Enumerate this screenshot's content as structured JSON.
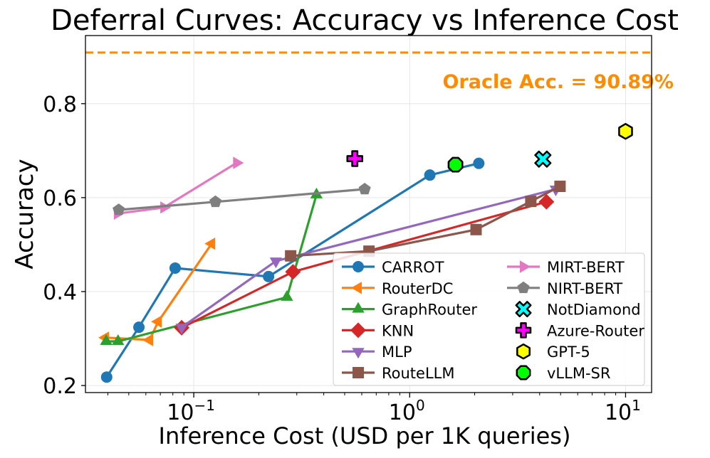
{
  "chart_data": {
    "type": "line",
    "title": "Deferral Curves: Accuracy vs Inference Cost",
    "xlabel": "Inference Cost (USD per 1K queries)",
    "ylabel": "Accuracy",
    "xscale": "log",
    "xlim": [
      0.0315,
      13.2
    ],
    "ylim": [
      0.185,
      0.945
    ],
    "xticks": [
      {
        "base": "10",
        "exp": "−1",
        "value": 0.1
      },
      {
        "base": "10",
        "exp": "0",
        "value": 1
      },
      {
        "base": "10",
        "exp": "1",
        "value": 10
      }
    ],
    "yticks": [
      {
        "label": "0.2",
        "value": 0.2
      },
      {
        "label": "0.4",
        "value": 0.4
      },
      {
        "label": "0.6",
        "value": 0.6
      },
      {
        "label": "0.8",
        "value": 0.8
      }
    ],
    "grid": true,
    "legend_placement": "lower-right",
    "oracle": {
      "value": 0.9089,
      "label": "Oracle Acc. = 90.89%",
      "color": "#ff8c00"
    },
    "series": [
      {
        "name": "CARROT",
        "color": "#1f77b4",
        "marker": "circle",
        "x": [
          0.0395,
          0.0557,
          0.082,
          0.222,
          1.24,
          2.09
        ],
        "y": [
          0.218,
          0.324,
          0.45,
          0.432,
          0.648,
          0.673
        ]
      },
      {
        "name": "RouterDC",
        "color": "#ff7f0e",
        "marker": "triangle-left",
        "x": [
          0.039,
          0.0624,
          0.0684,
          0.121
        ],
        "y": [
          0.302,
          0.297,
          0.336,
          0.502
        ]
      },
      {
        "name": "GraphRouter",
        "color": "#2ca02c",
        "marker": "triangle-up",
        "x": [
          0.0393,
          0.0446,
          0.27,
          0.37
        ],
        "y": [
          0.294,
          0.294,
          0.388,
          0.606
        ]
      },
      {
        "name": "KNN",
        "color": "#d62728",
        "marker": "diamond",
        "x": [
          0.0879,
          0.288,
          4.3
        ],
        "y": [
          0.323,
          0.442,
          0.591
        ]
      },
      {
        "name": "MLP",
        "color": "#9467bd",
        "marker": "triangle-down",
        "x": [
          0.0879,
          0.24,
          4.75
        ],
        "y": [
          0.324,
          0.465,
          0.618
        ]
      },
      {
        "name": "RouteLLM",
        "color": "#8c564b",
        "marker": "square",
        "x": [
          0.281,
          0.648,
          2.03,
          3.64,
          4.97
        ],
        "y": [
          0.476,
          0.486,
          0.532,
          0.592,
          0.624
        ]
      },
      {
        "name": "MIRT-BERT",
        "color": "#e377c2",
        "marker": "triangle-right",
        "x": [
          0.0443,
          0.0727,
          0.158
        ],
        "y": [
          0.566,
          0.579,
          0.674
        ]
      },
      {
        "name": "NIRT-BERT",
        "color": "#7f7f7f",
        "marker": "pentagon",
        "x": [
          0.0449,
          0.126,
          0.619
        ],
        "y": [
          0.574,
          0.591,
          0.618
        ]
      },
      {
        "name": "NotDiamond",
        "color": "#00ffff",
        "marker": "x",
        "x": [
          4.14
        ],
        "y": [
          0.682
        ]
      },
      {
        "name": "Azure-Router",
        "color": "#ff00ff",
        "marker": "plus",
        "x": [
          0.557
        ],
        "y": [
          0.683
        ]
      },
      {
        "name": "GPT-5",
        "color": "#ffff00",
        "marker": "hexagon",
        "x": [
          10.0
        ],
        "y": [
          0.741
        ]
      },
      {
        "name": "vLLM-SR",
        "color": "#00ff00",
        "marker": "octagon",
        "x": [
          1.63
        ],
        "y": [
          0.67
        ]
      }
    ]
  }
}
